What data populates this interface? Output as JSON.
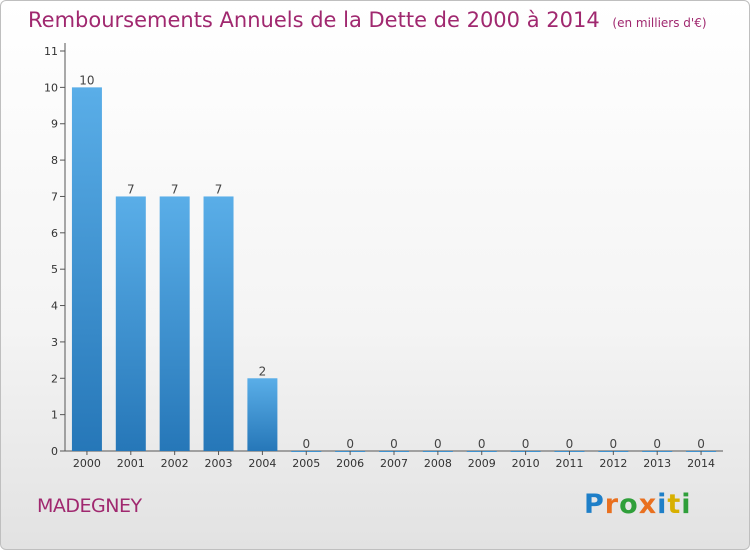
{
  "header": {
    "title": "Remboursements Annuels de la Dette de 2000 à 2014",
    "unit": "(en milliers d'€)"
  },
  "footer": {
    "commune": "MADEGNEY",
    "logo_text": "Proxiti"
  },
  "colors": {
    "title": "#a0286f",
    "bar_top": "#5aaee8",
    "bar_bottom": "#2677b8",
    "logo": [
      "#1e7fc8",
      "#e9701f",
      "#2f9f3a",
      "#e9701f",
      "#1e7fc8",
      "#d8b000",
      "#2f9f3a"
    ]
  },
  "chart_data": {
    "type": "bar",
    "title": "Remboursements Annuels de la Dette de 2000 à 2014",
    "xlabel": "",
    "ylabel": "",
    "categories": [
      "2000",
      "2001",
      "2002",
      "2003",
      "2004",
      "2005",
      "2006",
      "2007",
      "2008",
      "2009",
      "2010",
      "2011",
      "2012",
      "2013",
      "2014"
    ],
    "values": [
      10,
      7,
      7,
      7,
      2,
      0,
      0,
      0,
      0,
      0,
      0,
      0,
      0,
      0,
      0
    ],
    "data_labels": [
      "10",
      "7",
      "7",
      "7",
      "2",
      "0",
      "0",
      "0",
      "0",
      "0",
      "0",
      "0",
      "0",
      "0",
      "0"
    ],
    "ylim": [
      0,
      11
    ],
    "yticks": [
      0,
      1,
      2,
      3,
      4,
      5,
      6,
      7,
      8,
      9,
      10,
      11
    ],
    "grid": false,
    "legend": "none"
  }
}
